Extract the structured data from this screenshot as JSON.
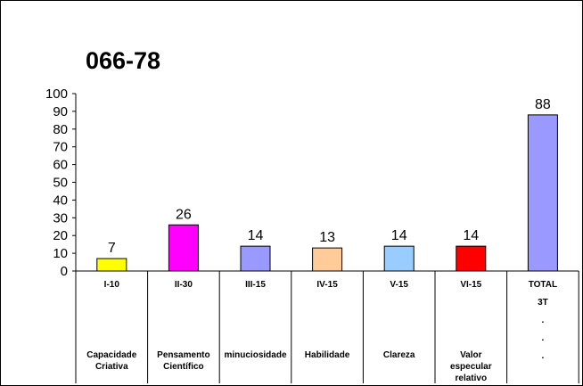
{
  "chart_data": {
    "type": "bar",
    "title": "066-78",
    "ylim": [
      0,
      100
    ],
    "yticks": [
      0,
      10,
      20,
      30,
      40,
      50,
      60,
      70,
      80,
      90,
      100
    ],
    "grid": false,
    "categories": [
      "I-10",
      "II-30",
      "III-15",
      "IV-15",
      "V-15",
      "VI-15",
      "TOTAL"
    ],
    "values": [
      7,
      26,
      14,
      13,
      14,
      14,
      88
    ],
    "data_labels": [
      "7",
      "26",
      "14",
      "13",
      "14",
      "14",
      "88"
    ],
    "colors": [
      "#FFFF00",
      "#FF00FF",
      "#9999FF",
      "#FFCC99",
      "#99CCFF",
      "#FF0000",
      "#9999FF"
    ],
    "descriptions": [
      [
        "Capacidade",
        "Criativa"
      ],
      [
        "Pensamento",
        "Científico"
      ],
      [
        "minuciosidade"
      ],
      [
        "Habilidade"
      ],
      [
        "Clareza"
      ],
      [
        "Valor",
        "especular",
        "relativo"
      ],
      []
    ],
    "total_extra_lines": [
      "3T",
      ".",
      ".",
      "."
    ]
  }
}
